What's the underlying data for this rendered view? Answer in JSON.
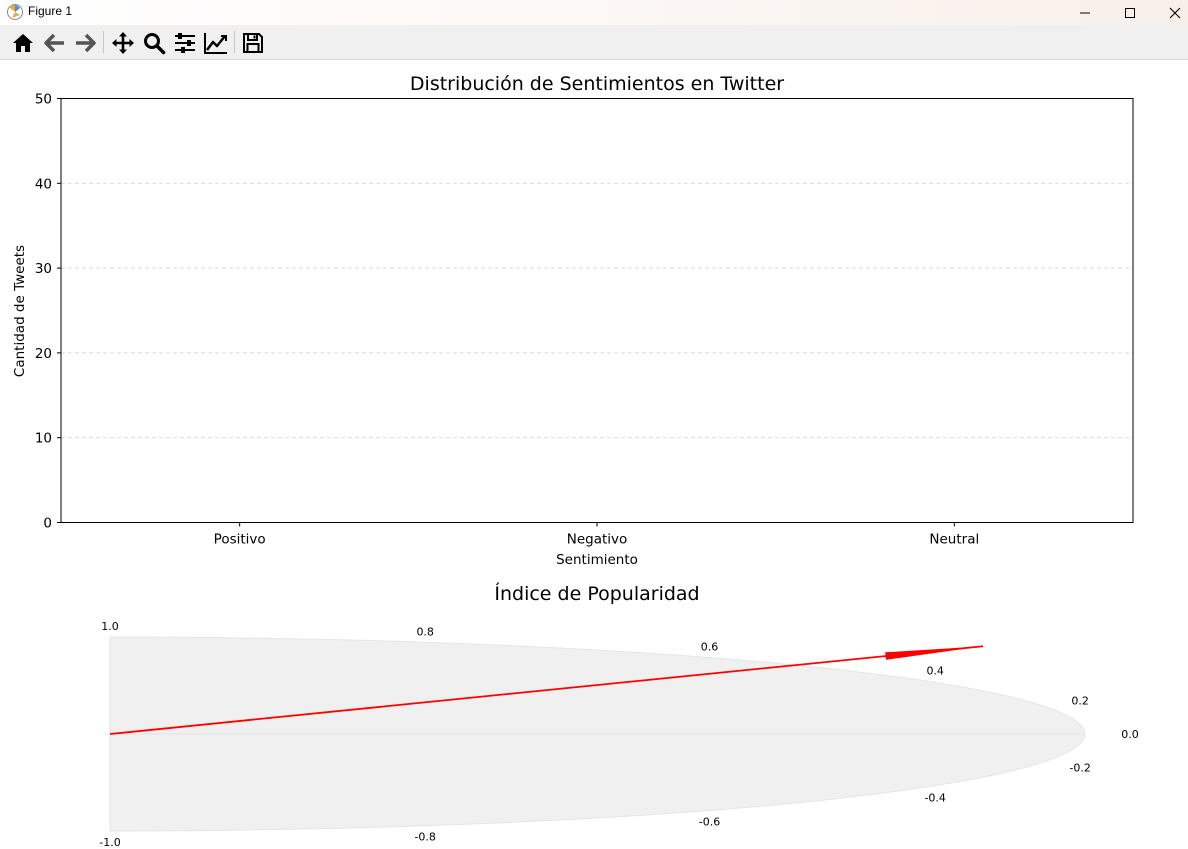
{
  "window": {
    "title": "Figure 1",
    "controls": {
      "minimize": "minimize-icon",
      "maximize": "maximize-icon",
      "close": "close-icon"
    }
  },
  "toolbar": {
    "buttons": [
      {
        "name": "home",
        "icon": "home-icon"
      },
      {
        "name": "back",
        "icon": "arrow-left-icon"
      },
      {
        "name": "forward",
        "icon": "arrow-right-icon"
      },
      {
        "name": "pan",
        "icon": "move-icon"
      },
      {
        "name": "zoom",
        "icon": "magnifier-icon"
      },
      {
        "name": "configure-subplots",
        "icon": "sliders-icon"
      },
      {
        "name": "edit-axis",
        "icon": "line-chart-icon"
      },
      {
        "name": "save",
        "icon": "floppy-disk-icon"
      }
    ]
  },
  "chart_data": [
    {
      "type": "bar",
      "title": "Distribución de Sentimientos en Twitter",
      "xlabel": "Sentimiento",
      "ylabel": "Cantidad de Tweets",
      "categories": [
        "Positivo",
        "Negativo",
        "Neutral"
      ],
      "values": [
        0,
        0,
        0
      ],
      "ylim": [
        0,
        50
      ],
      "yticks": [
        0,
        10,
        20,
        30,
        40,
        50
      ],
      "grid": {
        "axis": "y",
        "style": "dashed",
        "color": "#d9d9d9"
      },
      "bar_color": "#1f77b4"
    },
    {
      "type": "gauge",
      "title": "Índice de Popularidad",
      "tick_labels": [
        "1.0",
        "0.8",
        "0.6",
        "0.4",
        "0.2",
        "0.0",
        "-0.2",
        "-0.4",
        "-0.6",
        "-0.8",
        "-1.0"
      ],
      "value": 0.1,
      "needle_color": "#ff0000",
      "fill_color": "#f0f0f0"
    }
  ]
}
